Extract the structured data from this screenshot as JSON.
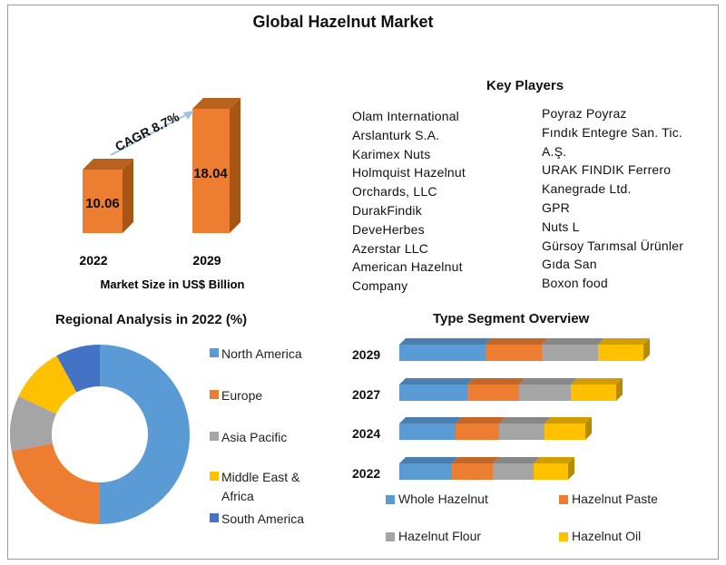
{
  "main_title": "Global Hazelnut Market",
  "colors": {
    "orange": "#ED7D31",
    "blue": "#5B9BD5",
    "gray": "#A5A5A5",
    "yellow": "#FFC000",
    "darkblue": "#4472C4"
  },
  "market_size": {
    "years": [
      "2022",
      "2029"
    ],
    "values": [
      "10.06",
      "18.04"
    ],
    "cagr": "CAGR 8.7%",
    "caption": "Market Size in US$ Billion"
  },
  "key_players": {
    "title": "Key Players",
    "left": [
      "Olam International",
      "Arslanturk S.A.",
      "Karimex Nuts",
      "Holmquist Hazelnut",
      "Orchards, LLC",
      "DurakFindik",
      "DeveHerbes",
      "Azerstar LLC",
      "American Hazelnut",
      "Company"
    ],
    "right": [
      "Poyraz Poyraz",
      "Fındık Entegre San. Tic.",
      "A.Ş.",
      "URAK FINDIK Ferrero",
      "Kanegrade Ltd.",
      "GPR",
      "Nuts L",
      "Gürsoy Tarımsal Ürünler",
      "Gıda San",
      "Boxon food"
    ]
  },
  "chart_data": [
    {
      "type": "bar",
      "categories": [
        "2022",
        "2029"
      ],
      "values": [
        10.06,
        18.04
      ],
      "title": "",
      "xlabel": "Market Size in US$ Billion",
      "ylabel": "",
      "annotation": "CAGR 8.7%"
    },
    {
      "type": "pie",
      "title": "Regional Analysis in 2022 (%)",
      "labels": [
        "North America",
        "Europe",
        "Asia Pacific",
        "Middle East & Africa",
        "South America"
      ],
      "values": [
        50,
        22,
        10,
        10,
        8
      ],
      "colors": [
        "#5B9BD5",
        "#ED7D31",
        "#A5A5A5",
        "#FFC000",
        "#4472C4"
      ],
      "legend": "right"
    },
    {
      "type": "bar",
      "orientation": "horizontal-stacked",
      "title": "Type Segment Overview",
      "categories": [
        "2029",
        "2027",
        "2024",
        "2022"
      ],
      "series": [
        {
          "name": "Whole Hazelnut",
          "color": "#5B9BD5",
          "values": [
            95,
            75,
            62,
            58
          ]
        },
        {
          "name": "Hazelnut Paste",
          "color": "#ED7D31",
          "values": [
            62,
            57,
            48,
            45
          ]
        },
        {
          "name": "Hazelnut Flour",
          "color": "#A5A5A5",
          "values": [
            62,
            57,
            50,
            45
          ]
        },
        {
          "name": "Hazelnut Oil",
          "color": "#FFC000",
          "values": [
            50,
            50,
            45,
            38
          ]
        }
      ],
      "legend": "bottom"
    }
  ]
}
